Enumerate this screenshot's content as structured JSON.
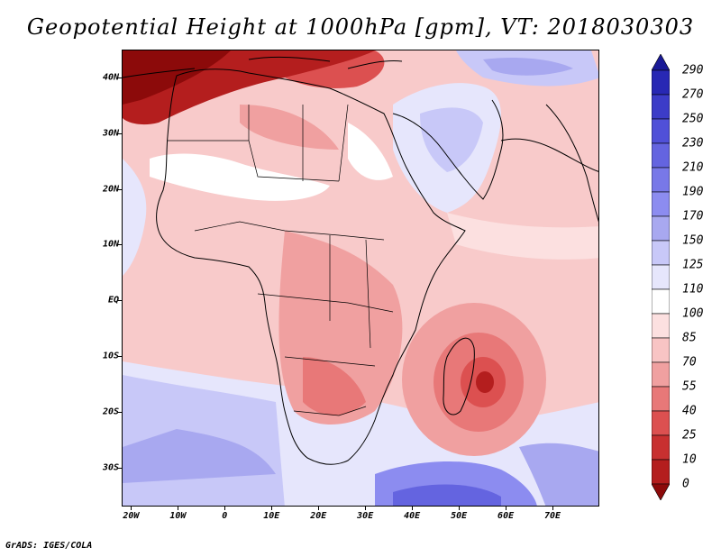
{
  "title": "Geopotential Height at 1000hPa [gpm], VT: 2018030303",
  "credit": "GrADS: IGES/COLA",
  "map": {
    "region": "Africa and surrounding oceans",
    "lat_labels": [
      "40N",
      "30N",
      "20N",
      "10N",
      "EQ",
      "10S",
      "20S",
      "30S"
    ],
    "lat_values": [
      40,
      30,
      20,
      10,
      0,
      -10,
      -20,
      -30
    ],
    "lon_labels": [
      "20W",
      "10W",
      "0",
      "10E",
      "20E",
      "30E",
      "40E",
      "50E",
      "60E",
      "70E"
    ],
    "lon_values": [
      -20,
      -10,
      0,
      10,
      20,
      30,
      40,
      50,
      60,
      70
    ],
    "lat_range": [
      -37,
      45
    ],
    "lon_range": [
      -22,
      80
    ]
  },
  "colorbar": {
    "labels": [
      "290",
      "270",
      "250",
      "230",
      "210",
      "190",
      "170",
      "150",
      "125",
      "110",
      "100",
      "85",
      "70",
      "55",
      "40",
      "25",
      "10",
      "0"
    ],
    "colors": [
      "#1a1a96",
      "#2828b4",
      "#3c3cc8",
      "#5050d8",
      "#6464e0",
      "#7878e8",
      "#8c8cf0",
      "#a8a8f0",
      "#c8c8f8",
      "#e6e6fc",
      "#ffffff",
      "#fce0e0",
      "#f8c4c4",
      "#f0a0a0",
      "#e87878",
      "#dc5050",
      "#c83030",
      "#b41e1e",
      "#8c0a0a"
    ]
  }
}
